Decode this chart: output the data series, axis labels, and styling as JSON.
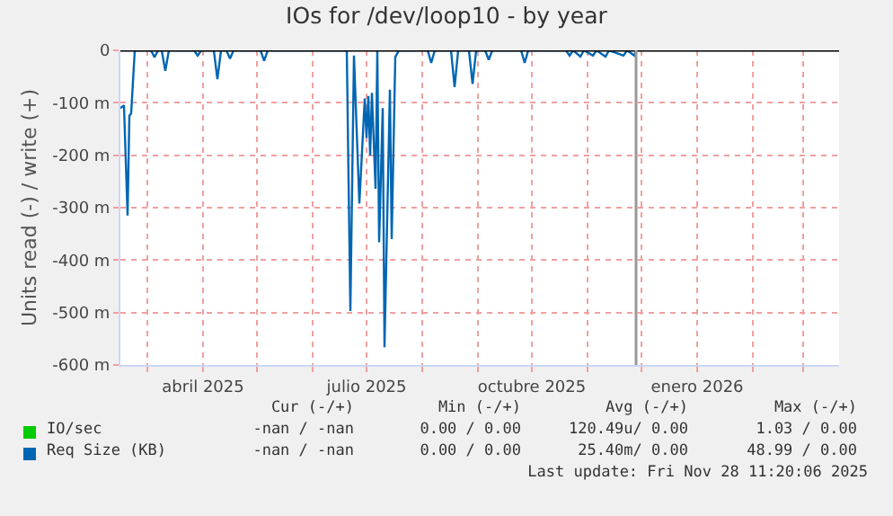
{
  "chart_data": {
    "type": "line",
    "title": "IOs for /dev/loop10 - by year",
    "ylabel": "Units read (-) / write (+)",
    "xlim": [
      "2025-02-14",
      "2026-03-21"
    ],
    "xticks": [
      {
        "value": "2025-03-01",
        "label": null
      },
      {
        "value": "2025-04-01",
        "label": "abril 2025"
      },
      {
        "value": "2025-05-01",
        "label": null
      },
      {
        "value": "2025-06-01",
        "label": null
      },
      {
        "value": "2025-07-01",
        "label": "julio 2025"
      },
      {
        "value": "2025-08-01",
        "label": null
      },
      {
        "value": "2025-09-01",
        "label": null
      },
      {
        "value": "2025-10-01",
        "label": "octubre 2025"
      },
      {
        "value": "2025-11-01",
        "label": null
      },
      {
        "value": "2025-12-01",
        "label": null
      },
      {
        "value": "2026-01-01",
        "label": "enero 2026"
      },
      {
        "value": "2026-02-01",
        "label": null
      },
      {
        "value": "2026-03-01",
        "label": null
      }
    ],
    "ylim": [
      -600,
      0
    ],
    "yticks": [
      0,
      {
        "value": -100,
        "label": "-100 m"
      },
      {
        "value": -200,
        "label": "-200 m"
      },
      {
        "value": -300,
        "label": "-300 m"
      },
      {
        "value": -400,
        "label": "-400 m"
      },
      {
        "value": -500,
        "label": "-500 m"
      },
      {
        "value": -600,
        "label": "-600 m"
      }
    ],
    "grid": true,
    "legend": "bottom",
    "series": [
      {
        "name": "IO/sec",
        "color": "#00cc00"
      },
      {
        "name": "Req Size (KB)",
        "color": "#0066b3",
        "x": [
          "2025-02-14",
          "2025-02-16",
          "2025-02-18",
          "2025-02-19",
          "2025-02-20",
          "2025-02-22",
          "2025-03-03",
          "2025-03-05",
          "2025-03-07",
          "2025-03-09",
          "2025-03-11",
          "2025-03-13",
          "2025-03-27",
          "2025-03-29",
          "2025-03-31",
          "2025-04-07",
          "2025-04-09",
          "2025-04-11",
          "2025-04-14",
          "2025-04-16",
          "2025-04-18",
          "2025-05-03",
          "2025-05-05",
          "2025-05-07",
          "2025-06-20",
          "2025-06-22",
          "2025-06-24",
          "2025-06-27",
          "2025-06-30",
          "2025-07-01",
          "2025-07-02",
          "2025-07-03",
          "2025-07-04",
          "2025-07-06",
          "2025-07-07",
          "2025-07-08",
          "2025-07-10",
          "2025-07-11",
          "2025-07-14",
          "2025-07-15",
          "2025-07-17",
          "2025-07-19",
          "2025-08-04",
          "2025-08-06",
          "2025-08-08",
          "2025-08-17",
          "2025-08-19",
          "2025-08-21",
          "2025-08-27",
          "2025-08-29",
          "2025-08-31",
          "2025-09-05",
          "2025-09-07",
          "2025-09-09",
          "2025-09-25",
          "2025-09-27",
          "2025-09-29",
          "2025-10-20",
          "2025-10-22",
          "2025-10-24",
          "2025-10-28",
          "2025-10-30",
          "2025-11-04",
          "2025-11-06",
          "2025-11-11",
          "2025-11-13",
          "2025-11-21",
          "2025-11-23",
          "2025-11-27",
          "2025-11-28"
        ],
        "values": [
          -110,
          -105,
          -315,
          -125,
          -120,
          0,
          0,
          -13,
          0,
          0,
          -39,
          0,
          0,
          -10,
          0,
          0,
          -55,
          0,
          0,
          -16,
          0,
          0,
          -20,
          0,
          0,
          -497,
          -10,
          -292,
          -92,
          -167,
          -87,
          -200,
          -81,
          -264,
          0,
          -366,
          -110,
          -566,
          -75,
          -360,
          -13,
          0,
          0,
          -24,
          0,
          0,
          -70,
          0,
          0,
          -64,
          0,
          0,
          -18,
          0,
          0,
          -24,
          0,
          0,
          -10,
          0,
          -12,
          0,
          -10,
          0,
          -12,
          0,
          -10,
          0,
          -10,
          0
        ]
      }
    ],
    "ref_lines": [
      {
        "axis": "y",
        "value": 0,
        "color": "#000000"
      },
      {
        "axis": "x",
        "value": "2025-11-28",
        "color": "#999999"
      }
    ],
    "annotations": [
      "Cur (-/+)",
      "Min (-/+)",
      "Avg (-/+)",
      "Max (-/+)",
      "-nan / -nan",
      "0.00 / 0.00",
      "120.49u/ 0.00",
      "1.03 / 0.00",
      "-nan / -nan",
      "0.00 / 0.00",
      "25.40m/ 0.00",
      "48.99 / 0.00",
      "Last update: Fri Nov 28 11:20:06 2025"
    ]
  }
}
